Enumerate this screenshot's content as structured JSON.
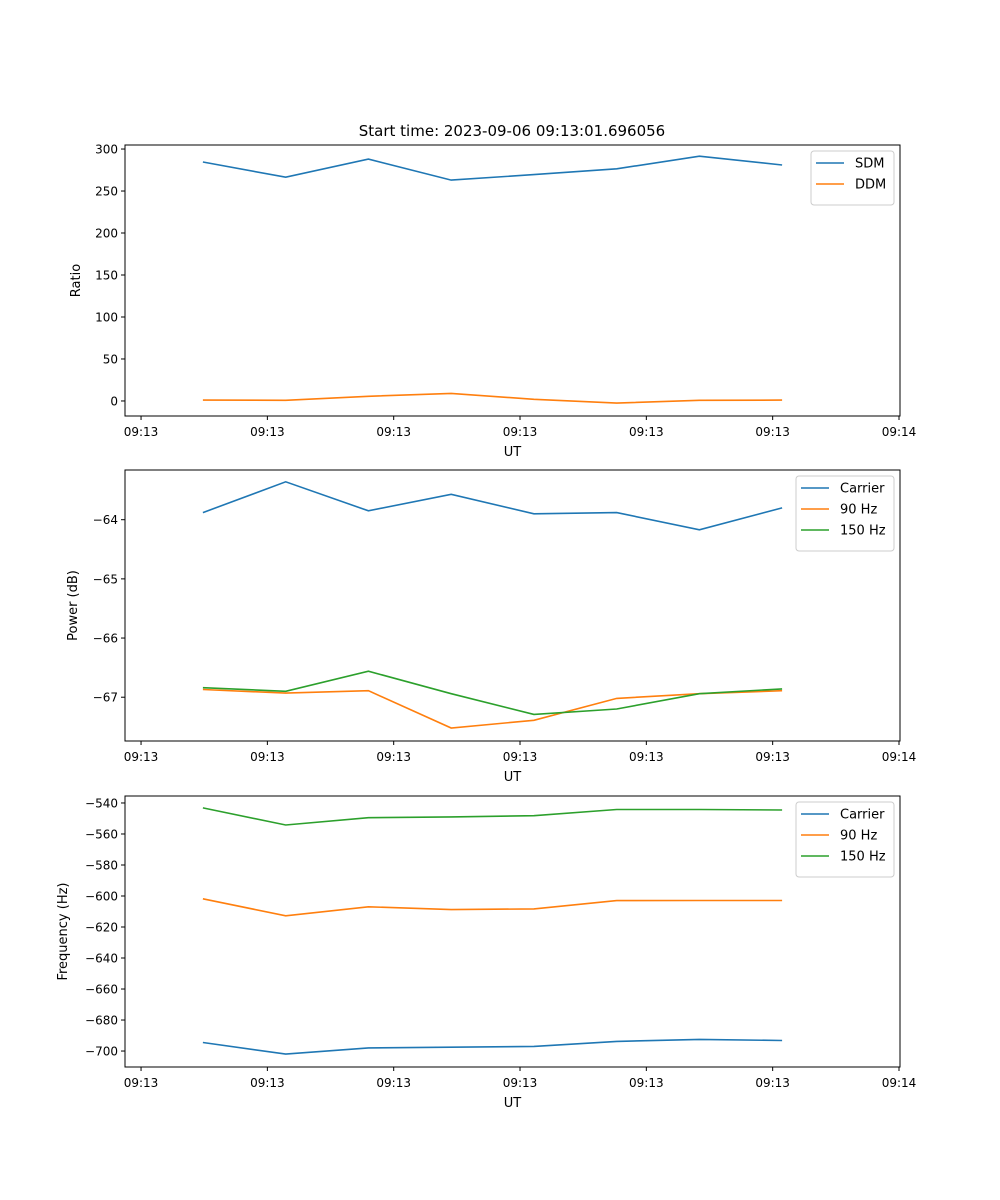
{
  "title": "Start time: 2023-09-06 09:13:01.696056",
  "colors": {
    "c0": "#1f77b4",
    "c1": "#ff7f0e",
    "c2": "#2ca02c"
  },
  "chart_data": [
    {
      "type": "line",
      "xlabel": "UT",
      "ylabel": "Ratio",
      "x_units": "seconds after 09:13:00",
      "x": [
        4.9,
        11.45,
        18.0,
        24.55,
        31.1,
        37.65,
        44.2,
        50.75
      ],
      "xlim": [
        -1.27,
        60.08
      ],
      "xticks": [
        0,
        10,
        20,
        30,
        40,
        50,
        60
      ],
      "xtick_labels": [
        "09:13",
        "09:13",
        "09:13",
        "09:13",
        "09:13",
        "09:13",
        "09:14"
      ],
      "ylim": [
        -17.9,
        304.8
      ],
      "yticks": [
        0,
        50,
        100,
        150,
        200,
        250,
        300
      ],
      "ytick_labels": [
        "0",
        "50",
        "100",
        "150",
        "200",
        "250",
        "300"
      ],
      "legend": "top-right",
      "series": [
        {
          "name": "SDM",
          "color": "#1f77b4",
          "values": [
            284.5,
            266.5,
            288,
            263,
            269.5,
            276.5,
            291.5,
            281
          ]
        },
        {
          "name": "DDM",
          "color": "#ff7f0e",
          "values": [
            1,
            0.8,
            5.5,
            9,
            2,
            -2.5,
            0.8,
            1
          ]
        }
      ]
    },
    {
      "type": "line",
      "xlabel": "UT",
      "ylabel": "Power (dB)",
      "x_units": "seconds after 09:13:00",
      "x": [
        4.9,
        11.45,
        18.0,
        24.55,
        31.1,
        37.65,
        44.2,
        50.75
      ],
      "xlim": [
        -1.27,
        60.08
      ],
      "xticks": [
        0,
        10,
        20,
        30,
        40,
        50,
        60
      ],
      "xtick_labels": [
        "09:13",
        "09:13",
        "09:13",
        "09:13",
        "09:13",
        "09:13",
        "09:14"
      ],
      "ylim": [
        -67.74,
        -63.16
      ],
      "yticks": [
        -67,
        -66,
        -65,
        -64
      ],
      "ytick_labels": [
        "−67",
        "−66",
        "−65",
        "−64"
      ],
      "legend": "top-right",
      "series": [
        {
          "name": "Carrier",
          "color": "#1f77b4",
          "values": [
            -63.88,
            -63.36,
            -63.85,
            -63.57,
            -63.9,
            -63.88,
            -64.17,
            -63.8
          ]
        },
        {
          "name": "90 Hz",
          "color": "#ff7f0e",
          "values": [
            -66.87,
            -66.93,
            -66.89,
            -67.52,
            -67.39,
            -67.02,
            -66.94,
            -66.89
          ]
        },
        {
          "name": "150 Hz",
          "color": "#2ca02c",
          "values": [
            -66.84,
            -66.9,
            -66.56,
            -66.94,
            -67.29,
            -67.2,
            -66.94,
            -66.86
          ]
        }
      ]
    },
    {
      "type": "line",
      "xlabel": "UT",
      "ylabel": "Frequency (Hz)",
      "x_units": "seconds after 09:13:00",
      "x": [
        4.9,
        11.45,
        18.0,
        24.55,
        31.1,
        37.65,
        44.2,
        50.75
      ],
      "xlim": [
        -1.27,
        60.08
      ],
      "xticks": [
        0,
        10,
        20,
        30,
        40,
        50,
        60
      ],
      "xtick_labels": [
        "09:13",
        "09:13",
        "09:13",
        "09:13",
        "09:13",
        "09:13",
        "09:14"
      ],
      "ylim": [
        -710.3,
        -535.5
      ],
      "yticks": [
        -700,
        -680,
        -660,
        -640,
        -620,
        -600,
        -580,
        -560,
        -540
      ],
      "ytick_labels": [
        "−700",
        "−680",
        "−660",
        "−640",
        "−620",
        "−600",
        "−580",
        "−560",
        "−540"
      ],
      "legend": "top-right",
      "series": [
        {
          "name": "Carrier",
          "color": "#1f77b4",
          "values": [
            -694.5,
            -702,
            -698,
            -697.5,
            -697,
            -693.8,
            -692.5,
            -693.2
          ]
        },
        {
          "name": "90 Hz",
          "color": "#ff7f0e",
          "values": [
            -601.8,
            -612.8,
            -607,
            -608.8,
            -608.3,
            -603,
            -602.9,
            -602.9
          ]
        },
        {
          "name": "150 Hz",
          "color": "#2ca02c",
          "values": [
            -543.2,
            -554.2,
            -549.5,
            -549,
            -548.2,
            -544.2,
            -544.2,
            -544.5
          ]
        }
      ]
    }
  ]
}
